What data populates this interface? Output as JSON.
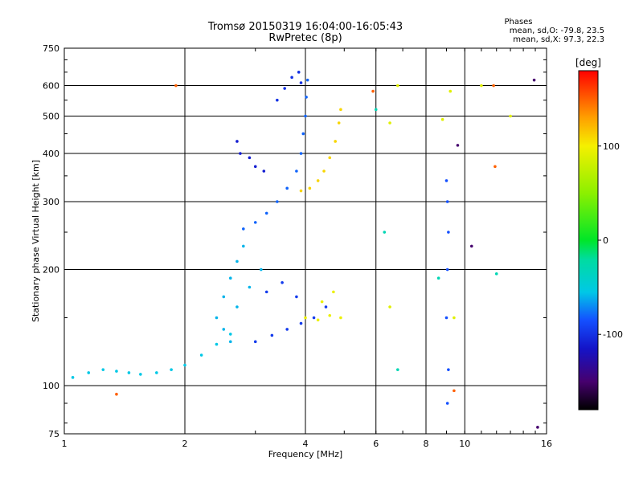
{
  "chart_data": {
    "type": "scatter",
    "title": "Tromsø 20150319 16:04:00-16:05:43",
    "subtitle": "RwPretec (8p)",
    "xlabel": "Frequency [MHz]",
    "ylabel": "Stationary phase Virtual Height [km]",
    "x_scale": "log",
    "y_scale": "log",
    "xlim": [
      1,
      16
    ],
    "ylim": [
      75,
      750
    ],
    "x_ticks": [
      1,
      2,
      4,
      6,
      8,
      10,
      16
    ],
    "x_tick_labels": [
      "1",
      "2",
      "4",
      "6",
      "8",
      "10",
      "16"
    ],
    "y_ticks": [
      75,
      100,
      200,
      300,
      400,
      500,
      600,
      750
    ],
    "y_tick_labels": [
      "75",
      "100",
      "200",
      "300",
      "400",
      "500",
      "600",
      "750"
    ],
    "grid": true,
    "grid_x": [
      2,
      4,
      6,
      8,
      10
    ],
    "grid_y": [
      100,
      200,
      300,
      400,
      500,
      600
    ],
    "stats": {
      "header": "Phases",
      "line1": "mean, sd,O: -79.8, 23.5",
      "line2": "mean, sd,X:  97.3, 22.3"
    },
    "colorbar": {
      "label": "[deg]",
      "range": [
        -180,
        180
      ],
      "ticks": [
        100,
        0,
        -100
      ],
      "tick_labels": [
        "100",
        "0",
        "-100"
      ],
      "colormap": "rainbow (black → purple → blue → cyan → green → yellow → orange → red)"
    },
    "traces": [
      {
        "phase": -55,
        "points": [
          [
            1.05,
            105
          ],
          [
            1.15,
            108
          ],
          [
            1.25,
            110
          ],
          [
            1.35,
            109
          ],
          [
            1.45,
            108
          ],
          [
            1.55,
            107
          ],
          [
            1.7,
            108
          ],
          [
            1.85,
            110
          ],
          [
            2.0,
            113
          ],
          [
            2.2,
            120
          ],
          [
            2.4,
            128
          ],
          [
            2.6,
            136
          ]
        ]
      },
      {
        "phase": -80,
        "points": [
          [
            2.8,
            255
          ],
          [
            3.0,
            265
          ],
          [
            3.2,
            280
          ],
          [
            3.4,
            300
          ],
          [
            3.6,
            325
          ],
          [
            3.8,
            360
          ],
          [
            3.9,
            400
          ],
          [
            3.95,
            450
          ],
          [
            4.0,
            500
          ],
          [
            4.02,
            560
          ],
          [
            4.05,
            620
          ]
        ]
      },
      {
        "phase": -100,
        "points": [
          [
            3.4,
            550
          ],
          [
            3.55,
            590
          ],
          [
            3.7,
            630
          ],
          [
            3.85,
            650
          ],
          [
            3.9,
            610
          ]
        ]
      },
      {
        "phase": -110,
        "points": [
          [
            2.7,
            430
          ],
          [
            2.75,
            400
          ],
          [
            2.9,
            390
          ],
          [
            3.0,
            370
          ],
          [
            3.15,
            360
          ]
        ]
      },
      {
        "phase": 110,
        "points": [
          [
            3.9,
            320
          ],
          [
            4.1,
            325
          ],
          [
            4.3,
            340
          ],
          [
            4.45,
            360
          ],
          [
            4.6,
            390
          ],
          [
            4.75,
            430
          ],
          [
            4.85,
            480
          ],
          [
            4.9,
            520
          ]
        ]
      },
      {
        "phase": -60,
        "points": [
          [
            2.4,
            150
          ],
          [
            2.5,
            170
          ],
          [
            2.6,
            190
          ],
          [
            2.7,
            210
          ],
          [
            2.8,
            230
          ],
          [
            2.5,
            140
          ],
          [
            2.6,
            130
          ],
          [
            2.7,
            160
          ],
          [
            2.9,
            180
          ],
          [
            3.1,
            200
          ]
        ]
      },
      {
        "phase": -95,
        "points": [
          [
            3.0,
            130
          ],
          [
            3.3,
            135
          ],
          [
            3.6,
            140
          ],
          [
            3.9,
            145
          ],
          [
            4.2,
            150
          ],
          [
            4.5,
            160
          ],
          [
            3.2,
            175
          ],
          [
            3.5,
            185
          ],
          [
            3.8,
            170
          ]
        ]
      },
      {
        "phase": 95,
        "points": [
          [
            4.0,
            150
          ],
          [
            4.3,
            148
          ],
          [
            4.6,
            152
          ],
          [
            4.9,
            150
          ],
          [
            4.4,
            165
          ],
          [
            4.7,
            175
          ]
        ]
      },
      {
        "phase": -85,
        "points": [
          [
            9.0,
            150
          ],
          [
            9.05,
            200
          ],
          [
            9.1,
            250
          ],
          [
            9.05,
            300
          ],
          [
            9.0,
            340
          ],
          [
            9.1,
            110
          ],
          [
            9.05,
            90
          ]
        ]
      },
      {
        "phase": -30,
        "points": [
          [
            6.3,
            250
          ],
          [
            6.8,
            110
          ],
          [
            8.6,
            190
          ],
          [
            12.0,
            195
          ],
          [
            6.0,
            520
          ]
        ]
      },
      {
        "phase": 90,
        "points": [
          [
            6.5,
            480
          ],
          [
            8.8,
            490
          ],
          [
            9.2,
            580
          ],
          [
            11.0,
            600
          ],
          [
            13.0,
            500
          ],
          [
            6.8,
            600
          ],
          [
            6.5,
            160
          ],
          [
            9.4,
            150
          ]
        ]
      },
      {
        "phase": 150,
        "points": [
          [
            1.9,
            600
          ],
          [
            11.8,
            600
          ],
          [
            11.9,
            370
          ],
          [
            5.9,
            580
          ],
          [
            1.35,
            95
          ],
          [
            9.4,
            97
          ]
        ]
      },
      {
        "phase": -150,
        "points": [
          [
            10.4,
            230
          ],
          [
            15.2,
            78
          ],
          [
            14.9,
            620
          ],
          [
            9.6,
            420
          ]
        ]
      }
    ]
  }
}
